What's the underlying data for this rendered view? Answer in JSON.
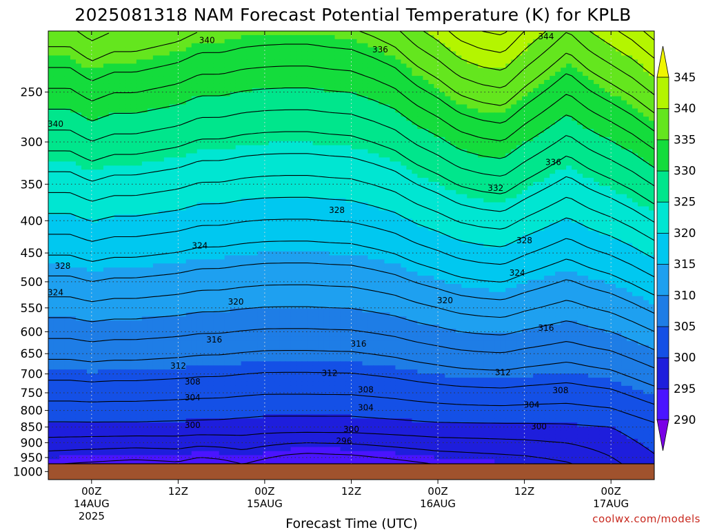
{
  "header": {
    "title": "2025081318 NAM Forecast Potential Temperature (K) for KPLB"
  },
  "footer": {
    "credit": "coolwx.com/models"
  },
  "chart_data": {
    "type": "heatmap",
    "title": "2025081318 NAM Forecast Potential Temperature (K) for KPLB",
    "xlabel": "Forecast Time (UTC)",
    "ylabel": "",
    "x_range_hours": [
      -6,
      78
    ],
    "x_ticks": [
      {
        "hour": 0,
        "lines": [
          "00Z",
          "14AUG",
          "2025"
        ]
      },
      {
        "hour": 12,
        "lines": [
          "12Z"
        ]
      },
      {
        "hour": 24,
        "lines": [
          "00Z",
          "15AUG"
        ]
      },
      {
        "hour": 36,
        "lines": [
          "12Z"
        ]
      },
      {
        "hour": 48,
        "lines": [
          "00Z",
          "16AUG"
        ]
      },
      {
        "hour": 60,
        "lines": [
          "12Z"
        ]
      },
      {
        "hour": 72,
        "lines": [
          "00Z",
          "17AUG"
        ]
      }
    ],
    "y_range_hpa": [
      1030,
      200
    ],
    "y_scale": "log",
    "y_ticks": [
      250,
      300,
      350,
      400,
      450,
      500,
      550,
      600,
      650,
      700,
      750,
      800,
      850,
      900,
      950,
      1000
    ],
    "grid": "dotted",
    "colorbar": {
      "position": "right",
      "levels": [
        290,
        295,
        300,
        305,
        310,
        315,
        320,
        325,
        330,
        335,
        340,
        345
      ],
      "colors": [
        "#7a00e6",
        "#4a14ff",
        "#1e1edc",
        "#1450e6",
        "#1e7de6",
        "#1ea0f0",
        "#00c8f0",
        "#00e6d2",
        "#00e68c",
        "#14dc3c",
        "#64e61e",
        "#b4f500",
        "#f0f500"
      ]
    },
    "ground_color": "#a0522d",
    "profile_bottom": {
      "xs": [
        -6,
        6,
        12,
        15,
        18,
        21,
        24,
        27,
        30,
        33,
        36,
        42,
        48,
        54,
        60,
        63,
        66,
        69,
        72,
        75,
        78
      ],
      "vals": [
        293,
        292,
        292.5,
        291.5,
        292,
        293,
        292,
        291,
        290.5,
        290.8,
        291,
        292,
        293,
        293.5,
        294,
        294.5,
        295,
        296,
        297,
        298,
        299
      ]
    },
    "profile_mid": {
      "xs": [
        -6,
        6,
        12,
        18,
        24,
        36,
        48,
        60,
        66,
        72,
        78
      ],
      "vals": [
        299.5,
        299.5,
        299.4,
        299.3,
        299,
        299,
        299.5,
        299.6,
        299.7,
        300,
        301.5
      ]
    },
    "profile_top": {
      "xs": [
        -6,
        -3,
        0,
        3,
        6,
        9,
        12,
        15,
        18,
        21,
        24,
        27,
        30,
        33,
        36,
        39,
        42,
        45,
        48,
        51,
        54,
        57,
        60,
        63,
        66,
        69,
        72,
        75,
        78
      ],
      "vals": [
        337.5,
        337.5,
        339,
        338,
        338,
        337.5,
        337,
        336,
        336,
        335.5,
        335.3,
        335.2,
        335.2,
        335.5,
        335.7,
        336.5,
        337.5,
        339.5,
        341,
        343,
        344,
        344.5,
        342,
        340,
        338,
        340,
        341.5,
        343,
        345
      ]
    },
    "contour_labels": [
      {
        "value": "340",
        "hour": 16,
        "hpa": 207
      },
      {
        "value": "336",
        "hour": 40,
        "hpa": 214
      },
      {
        "value": "344",
        "hour": 63,
        "hpa": 204
      },
      {
        "value": "340",
        "hour": -5,
        "hpa": 281
      },
      {
        "value": "336",
        "hour": 64,
        "hpa": 323
      },
      {
        "value": "332",
        "hour": 56,
        "hpa": 355
      },
      {
        "value": "328",
        "hour": 34,
        "hpa": 385
      },
      {
        "value": "328",
        "hour": 60,
        "hpa": 430
      },
      {
        "value": "324",
        "hour": 15,
        "hpa": 438
      },
      {
        "value": "328",
        "hour": -4,
        "hpa": 472
      },
      {
        "value": "324",
        "hour": 59,
        "hpa": 484
      },
      {
        "value": "324",
        "hour": -5,
        "hpa": 520
      },
      {
        "value": "320",
        "hour": 20,
        "hpa": 538
      },
      {
        "value": "320",
        "hour": 49,
        "hpa": 535
      },
      {
        "value": "316",
        "hour": 63,
        "hpa": 592
      },
      {
        "value": "316",
        "hour": 17,
        "hpa": 618
      },
      {
        "value": "316",
        "hour": 37,
        "hpa": 627
      },
      {
        "value": "312",
        "hour": 12,
        "hpa": 680
      },
      {
        "value": "312",
        "hour": 33,
        "hpa": 698
      },
      {
        "value": "312",
        "hour": 57,
        "hpa": 696
      },
      {
        "value": "308",
        "hour": 14,
        "hpa": 720
      },
      {
        "value": "308",
        "hour": 38,
        "hpa": 742
      },
      {
        "value": "308",
        "hour": 65,
        "hpa": 743
      },
      {
        "value": "304",
        "hour": 14,
        "hpa": 763
      },
      {
        "value": "304",
        "hour": 38,
        "hpa": 792
      },
      {
        "value": "304",
        "hour": 61,
        "hpa": 784
      },
      {
        "value": "300",
        "hour": 14,
        "hpa": 844
      },
      {
        "value": "300",
        "hour": 36,
        "hpa": 857
      },
      {
        "value": "300",
        "hour": 62,
        "hpa": 848
      },
      {
        "value": "296",
        "hour": 35,
        "hpa": 894
      }
    ]
  }
}
